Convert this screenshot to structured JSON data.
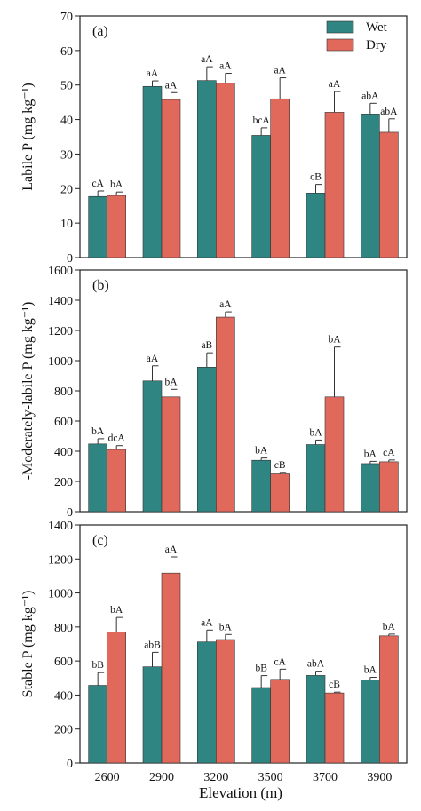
{
  "figure": {
    "xlabel": "Elevation (m)",
    "legend": {
      "placement": "top-right",
      "entries": [
        "Wet",
        "Dry"
      ]
    }
  },
  "colors": {
    "Wet": "#2e8582",
    "Dry": "#e0695c",
    "frame": "#222222"
  },
  "chart_data": [
    {
      "type": "bar",
      "panel_label": "(a)",
      "ylabel": "Labile P (mg kg⁻¹)",
      "categories": [
        "2600",
        "2900",
        "3200",
        "3500",
        "3700",
        "3900"
      ],
      "ylim": [
        0,
        70
      ],
      "yticks": [
        0,
        10,
        20,
        30,
        40,
        50,
        60,
        70
      ],
      "series": [
        {
          "name": "Wet",
          "values": [
            17.7,
            49.6,
            51.3,
            35.4,
            18.7,
            41.6
          ],
          "errors": [
            1.6,
            1.6,
            4.0,
            2.2,
            2.5,
            3.1
          ],
          "labels": [
            "cA",
            "aA",
            "aA",
            "bcA",
            "cB",
            "abA"
          ]
        },
        {
          "name": "Dry",
          "values": [
            18.0,
            45.8,
            50.5,
            46.0,
            42.1,
            36.3
          ],
          "errors": [
            1.0,
            2.0,
            2.9,
            6.1,
            6.0,
            3.9
          ],
          "labels": [
            "bA",
            "aA",
            "aA",
            "aA",
            "aA",
            "abA"
          ]
        }
      ],
      "legend_shown": true
    },
    {
      "type": "bar",
      "panel_label": "(b)",
      "ylabel": "-Moderately-labile P (mg kg⁻¹)",
      "categories": [
        "2600",
        "2900",
        "3200",
        "3500",
        "3700",
        "3900"
      ],
      "ylim": [
        0,
        1600
      ],
      "yticks": [
        0,
        200,
        400,
        600,
        800,
        1000,
        1200,
        1400,
        1600
      ],
      "series": [
        {
          "name": "Wet",
          "values": [
            448,
            866,
            957,
            340,
            444,
            318
          ],
          "errors": [
            35,
            100,
            95,
            15,
            30,
            15
          ],
          "labels": [
            "bA",
            "aA",
            "aB",
            "bA",
            "bA",
            "bA"
          ]
        },
        {
          "name": "Dry",
          "values": [
            412,
            760,
            1288,
            250,
            760,
            330
          ],
          "errors": [
            25,
            50,
            35,
            10,
            330,
            12
          ],
          "labels": [
            "dcA",
            "bA",
            "aA",
            "cB",
            "bA",
            "cA"
          ]
        }
      ],
      "legend_shown": false
    },
    {
      "type": "bar",
      "panel_label": "(c)",
      "ylabel": "Stable P (mg kg⁻¹)",
      "categories": [
        "2600",
        "2900",
        "3200",
        "3500",
        "3700",
        "3900"
      ],
      "ylim": [
        0,
        1400
      ],
      "yticks": [
        0,
        200,
        400,
        600,
        800,
        1000,
        1200,
        1400
      ],
      "series": [
        {
          "name": "Wet",
          "values": [
            457,
            566,
            712,
            444,
            515,
            489
          ],
          "errors": [
            75,
            85,
            70,
            70,
            25,
            15
          ],
          "labels": [
            "bB",
            "abB",
            "aA",
            "bB",
            "abA",
            "bA"
          ]
        },
        {
          "name": "Dry",
          "values": [
            771,
            1117,
            726,
            492,
            412,
            748
          ],
          "errors": [
            85,
            95,
            30,
            60,
            5,
            10
          ],
          "labels": [
            "bA",
            "aA",
            "bA",
            "cA",
            "cB",
            "bA"
          ]
        }
      ],
      "legend_shown": false
    }
  ]
}
